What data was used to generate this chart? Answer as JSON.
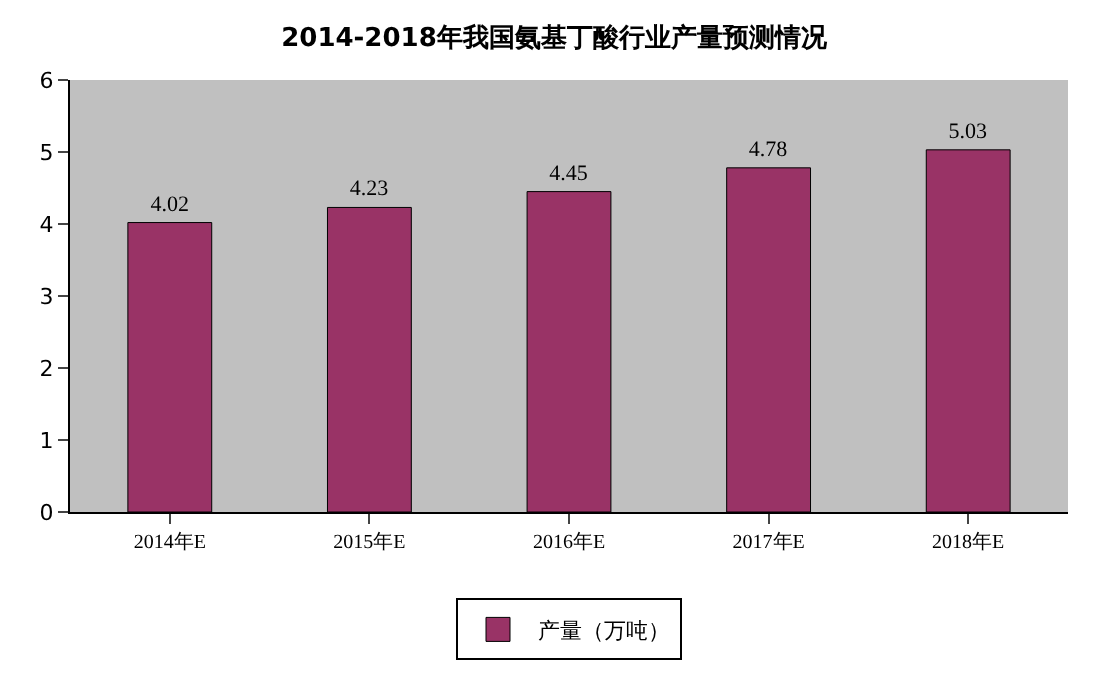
{
  "chart_data": {
    "type": "bar",
    "title": "2014-2018年我国氨基丁酸行业产量预测情况",
    "categories": [
      "2014年E",
      "2015年E",
      "2016年E",
      "2017年E",
      "2018年E"
    ],
    "series": [
      {
        "name": "产量（万吨）",
        "color": "#993366",
        "values": [
          4.02,
          4.23,
          4.45,
          4.78,
          5.03
        ]
      }
    ],
    "ylim": [
      0,
      6
    ],
    "yticks": [
      0,
      1,
      2,
      3,
      4,
      5,
      6
    ],
    "data_labels": true,
    "grid": false,
    "legend": "bottom"
  }
}
